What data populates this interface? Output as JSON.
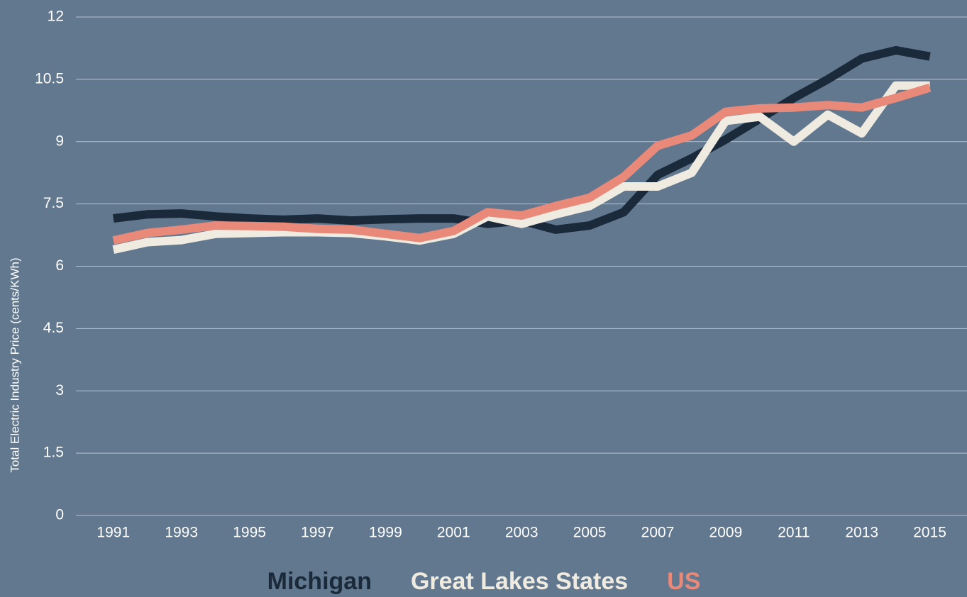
{
  "chart_data": {
    "type": "line",
    "y_label": "Total Electric Industry Price (cents/KWh)",
    "x": [
      1991,
      1992,
      1993,
      1994,
      1995,
      1996,
      1997,
      1998,
      1999,
      2000,
      2001,
      2002,
      2003,
      2004,
      2005,
      2006,
      2007,
      2008,
      2009,
      2010,
      2011,
      2012,
      2013,
      2014,
      2015
    ],
    "xlim": [
      1990.65,
      2015.3
    ],
    "xticks": [
      1991,
      1993,
      1995,
      1997,
      1999,
      2001,
      2003,
      2005,
      2007,
      2009,
      2011,
      2013,
      2015
    ],
    "ylim": [
      0,
      12
    ],
    "yticks": [
      0,
      1.5,
      3,
      4.5,
      6,
      7.5,
      9,
      10.5,
      12
    ],
    "grid": true,
    "legend": "bottom",
    "series": [
      {
        "name": "Michigan",
        "color": "#1b2a3a",
        "values": [
          7.15,
          7.25,
          7.27,
          7.2,
          7.15,
          7.12,
          7.15,
          7.1,
          7.13,
          7.15,
          7.15,
          7.02,
          7.1,
          6.88,
          6.98,
          7.3,
          8.2,
          8.6,
          9.05,
          9.55,
          10.05,
          10.5,
          11.0,
          11.2,
          11.05
        ]
      },
      {
        "name": "Great Lakes States",
        "color": "#f0ebe0",
        "values": [
          6.4,
          6.58,
          6.63,
          6.78,
          6.8,
          6.82,
          6.82,
          6.8,
          6.72,
          6.62,
          6.78,
          7.2,
          7.02,
          7.25,
          7.45,
          7.92,
          7.92,
          8.25,
          9.5,
          9.6,
          9.0,
          9.65,
          9.2,
          10.35,
          10.35
        ]
      },
      {
        "name": "US",
        "color": "#e8897a",
        "values": [
          6.62,
          6.8,
          6.88,
          6.98,
          6.97,
          6.95,
          6.9,
          6.88,
          6.78,
          6.68,
          6.85,
          7.3,
          7.22,
          7.45,
          7.65,
          8.15,
          8.9,
          9.15,
          9.72,
          9.8,
          9.82,
          9.88,
          9.82,
          10.05,
          10.3
        ]
      }
    ]
  }
}
